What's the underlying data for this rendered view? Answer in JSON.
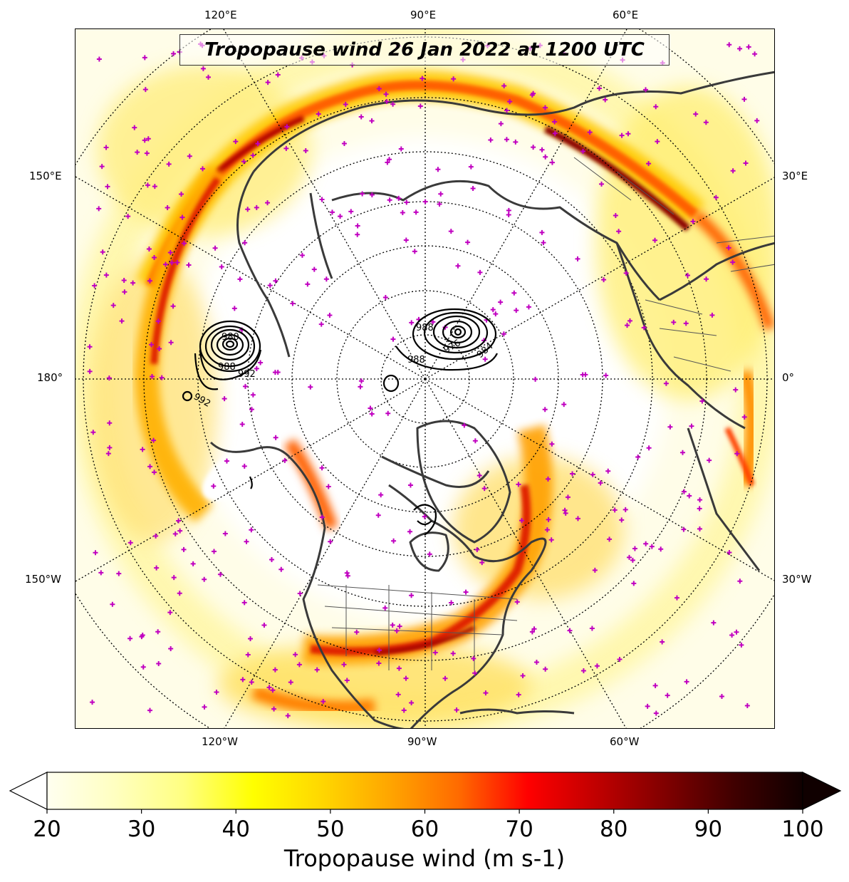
{
  "title": "Tropopause wind 26 Jan 2022 at 1200 UTC",
  "longitude_labels": {
    "top": [
      "120°E",
      "90°E",
      "60°E"
    ],
    "bottom": [
      "120°W",
      "90°W",
      "60°W"
    ],
    "left": [
      "150°E",
      "180°",
      "150°W"
    ],
    "right": [
      "30°E",
      "0°",
      "30°W"
    ]
  },
  "pressure_contour_labels": [
    "992",
    "988",
    "980",
    "976",
    "984",
    "988",
    "992",
    "988"
  ],
  "colorbar": {
    "min": 20,
    "max": 100,
    "ticks": [
      "20",
      "30",
      "40",
      "50",
      "60",
      "70",
      "80",
      "90",
      "100"
    ],
    "label": "Tropopause wind (m s-1)",
    "colors": [
      "#fffff0",
      "#ffffc0",
      "#ffff80",
      "#ffff00",
      "#ffd700",
      "#ffa500",
      "#ff6a00",
      "#ff0000",
      "#c00000",
      "#800000",
      "#400000",
      "#100000"
    ]
  },
  "colors": {
    "coastline": "#3a3a3a",
    "marker": "#c000c0",
    "contour": "#000000",
    "graticule": "#000000"
  }
}
